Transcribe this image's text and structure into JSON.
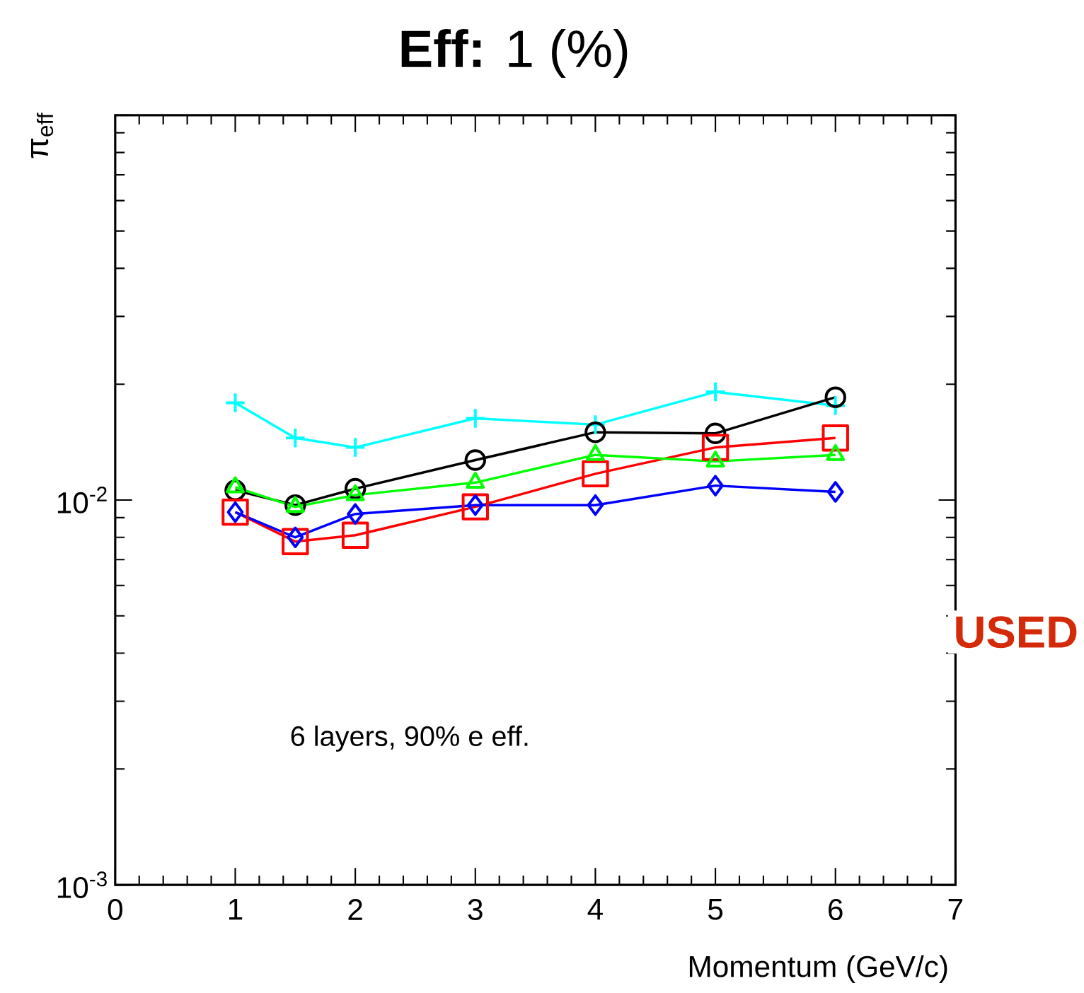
{
  "chart_data": {
    "type": "line",
    "title": "**Eff:** 1 (%)",
    "xlabel": "Momentum (GeV/c)",
    "ylabel": "π$_{eff}$",
    "log": "y",
    "xlim": [
      0,
      7
    ],
    "xticks": [
      0,
      1,
      2,
      3,
      4,
      5,
      6,
      7
    ],
    "ylim": [
      0.001,
      0.1
    ],
    "yticks": [
      {
        "value": 0.001,
        "label": "10$^{-3}$"
      },
      {
        "value": 0.01,
        "label": "10$^{-2}$"
      },
      {
        "value": 0.1,
        "label": null
      }
    ],
    "x": [
      1,
      1.5,
      2,
      3,
      4,
      5,
      6
    ],
    "series": [
      {
        "color": "#00ffff",
        "marker": "cross",
        "values": [
          0.0179,
          0.0145,
          0.0137,
          0.0163,
          0.0157,
          0.0191,
          0.0176
        ]
      },
      {
        "color": "#000000",
        "marker": "circle",
        "values": [
          0.0106,
          0.0097,
          0.0107,
          0.0127,
          0.015,
          0.0149,
          0.0185
        ]
      },
      {
        "color": "#ff0000",
        "marker": "square",
        "values": [
          0.0093,
          0.0078,
          0.0081,
          0.0096,
          0.0117,
          0.0137,
          0.0145
        ]
      },
      {
        "color": "#00ff00",
        "marker": "triangle",
        "values": [
          0.0108,
          0.0096,
          0.0103,
          0.0111,
          0.0131,
          0.0126,
          0.0131
        ]
      },
      {
        "color": "#0000ff",
        "marker": "diamond",
        "values": [
          0.0093,
          0.008,
          0.0092,
          0.0097,
          0.0097,
          0.0109,
          0.0105
        ]
      }
    ],
    "annotations": [
      "6 layers, 90% e eff.",
      "USED"
    ]
  }
}
